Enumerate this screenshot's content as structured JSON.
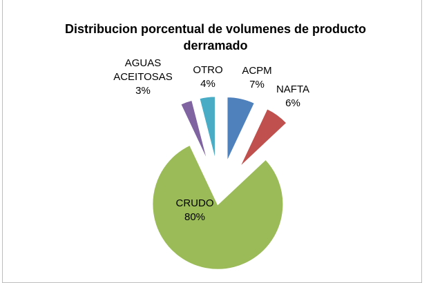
{
  "chart_data": {
    "type": "pie",
    "title": "Distribucion porcentual de volumenes de producto derramado",
    "categories": [
      "ACPM",
      "NAFTA",
      "CRUDO",
      "AGUAS ACEITOSAS",
      "OTRO"
    ],
    "values": [
      7,
      6,
      80,
      3,
      4
    ],
    "value_labels": [
      "7%",
      "6%",
      "80%",
      "3%",
      "4%"
    ],
    "colors": [
      "#4f81bd",
      "#c0504d",
      "#9bbb59",
      "#8064a2",
      "#4bacc6"
    ]
  }
}
